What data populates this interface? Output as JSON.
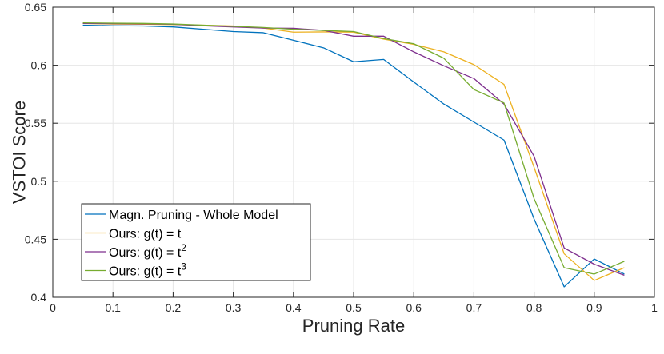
{
  "chart_data": {
    "type": "line",
    "xlabel": "Pruning Rate",
    "ylabel": "VSTOI Score",
    "xlim": [
      0,
      1
    ],
    "ylim": [
      0.4,
      0.65
    ],
    "xticks": [
      "0",
      "0.1",
      "0.2",
      "0.3",
      "0.4",
      "0.5",
      "0.6",
      "0.7",
      "0.8",
      "0.9",
      "1"
    ],
    "yticks": [
      "0.4",
      "0.45",
      "0.5",
      "0.55",
      "0.6",
      "0.65"
    ],
    "grid": true,
    "legend_position": "bottom-left",
    "x": [
      0.05,
      0.1,
      0.15,
      0.2,
      0.25,
      0.3,
      0.35,
      0.4,
      0.45,
      0.5,
      0.55,
      0.6,
      0.65,
      0.7,
      0.75,
      0.8,
      0.85,
      0.9,
      0.95
    ],
    "series": [
      {
        "name": "Magn. Pruning - Whole Model",
        "color": "#0072BD",
        "values": [
          0.6345,
          0.634,
          0.6338,
          0.633,
          0.631,
          0.629,
          0.628,
          0.6215,
          0.615,
          0.603,
          0.605,
          0.5855,
          0.5665,
          0.551,
          0.5355,
          0.4675,
          0.409,
          0.433,
          0.42
        ]
      },
      {
        "name": "Ours: g(t) = t",
        "color": "#EDB120",
        "values": [
          0.636,
          0.6355,
          0.6353,
          0.635,
          0.6345,
          0.6338,
          0.632,
          0.6285,
          0.6287,
          0.6285,
          0.6225,
          0.618,
          0.6115,
          0.6005,
          0.5835,
          0.512,
          0.4375,
          0.4145,
          0.4255
        ]
      },
      {
        "name": "Ours: g(t) = t",
        "superscript": "2",
        "color": "#7E2F8E",
        "values": [
          0.636,
          0.6358,
          0.6356,
          0.6353,
          0.634,
          0.633,
          0.632,
          0.6318,
          0.63,
          0.625,
          0.625,
          0.6115,
          0.5995,
          0.5885,
          0.5665,
          0.5215,
          0.4425,
          0.4285,
          0.419
        ]
      },
      {
        "name": "Ours: g(t) = t",
        "superscript": "3",
        "color": "#77AC30",
        "values": [
          0.6365,
          0.6362,
          0.636,
          0.6355,
          0.6345,
          0.6335,
          0.6325,
          0.631,
          0.63,
          0.629,
          0.623,
          0.6185,
          0.606,
          0.579,
          0.5675,
          0.485,
          0.4255,
          0.42,
          0.431
        ]
      }
    ]
  }
}
